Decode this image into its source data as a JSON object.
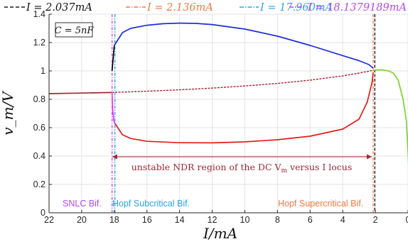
{
  "chart_data": {
    "type": "line",
    "legend": {
      "placement": "top",
      "entries": [
        {
          "label": "I = 2.037mA",
          "color": "#1a1a1a",
          "dash": "long-dash"
        },
        {
          "label": "I = 2.136mA",
          "color": "#f07a43",
          "dash": "dash-dot"
        },
        {
          "label": "I = 17.960mA",
          "color": "#2ea3e0",
          "dash": "dash-dot"
        },
        {
          "label": "I = 18.1379189mA",
          "color": "#b347f0",
          "dash": "dash-dot"
        }
      ]
    },
    "annotations": {
      "capacitance": "C = 5nF",
      "region": "unstable NDR region of the DC V",
      "region_sub": "m",
      "region_tail": " versus I locus",
      "sn": "SNLC Bif.",
      "hopf_sub": "Hopf Subcritical Bif.",
      "hopf_super": "Hopf Supercritical Bif."
    },
    "x_axis": {
      "label": "I/mA",
      "range": [
        22,
        0
      ],
      "reversed": true,
      "ticks": [
        "22",
        "20",
        "18",
        "16",
        "14",
        "12",
        "10",
        "8",
        "6",
        "4",
        "2",
        "0"
      ]
    },
    "y_axis": {
      "label": "v_m/V",
      "range": [
        0,
        1.4
      ],
      "ticks": [
        "0",
        "0.2",
        "0.4",
        "0.6",
        "0.8",
        "1",
        "1.2",
        "1.4"
      ]
    },
    "grid": true,
    "vlines": [
      {
        "x": 2.037,
        "color": "#1a1a1a"
      },
      {
        "x": 2.136,
        "color": "#f07a43"
      },
      {
        "x": 17.96,
        "color": "#2ea3e0"
      },
      {
        "x": 18.1379,
        "color": "#b347f0"
      }
    ],
    "series": [
      {
        "role": "dc-stable-left",
        "color": "#a32638",
        "points": [
          [
            22,
            0.84
          ],
          [
            20,
            0.844
          ],
          [
            18.14,
            0.848
          ]
        ]
      },
      {
        "role": "dc-unstable",
        "color": "#a32638",
        "dashed": true,
        "points": [
          [
            18.14,
            0.848
          ],
          [
            16,
            0.857
          ],
          [
            14,
            0.867
          ],
          [
            12,
            0.879
          ],
          [
            10,
            0.894
          ],
          [
            8,
            0.912
          ],
          [
            6,
            0.935
          ],
          [
            4,
            0.965
          ],
          [
            3,
            0.985
          ],
          [
            2.1,
            1.005
          ]
        ]
      },
      {
        "role": "dc-stable-right",
        "color": "#77d62b",
        "points": [
          [
            2.1,
            1.005
          ],
          [
            1.6,
            1.008
          ],
          [
            1.2,
            1.0
          ],
          [
            0.9,
            0.985
          ],
          [
            0.6,
            0.935
          ],
          [
            0.3,
            0.8
          ],
          [
            0.1,
            0.65
          ],
          [
            0,
            0.43
          ],
          [
            -0.1,
            0.2
          ]
        ]
      },
      {
        "role": "lc-max-stable",
        "color": "#1f2dd8",
        "points": [
          [
            18.0,
            1.18
          ],
          [
            17.5,
            1.27
          ],
          [
            17,
            1.3
          ],
          [
            16,
            1.322
          ],
          [
            15,
            1.333
          ],
          [
            14,
            1.337
          ],
          [
            13,
            1.335
          ],
          [
            12,
            1.327
          ],
          [
            10,
            1.295
          ],
          [
            8,
            1.245
          ],
          [
            6,
            1.18
          ],
          [
            4,
            1.108
          ],
          [
            3,
            1.072
          ],
          [
            2.4,
            1.045
          ],
          [
            2.136,
            1.02
          ]
        ]
      },
      {
        "role": "lc-max-unstable",
        "color": "#000000",
        "points": [
          [
            18.14,
            1.0
          ],
          [
            18.07,
            1.09
          ],
          [
            18.0,
            1.18
          ]
        ]
      },
      {
        "role": "lc-min-stable",
        "color": "#e81b1b",
        "points": [
          [
            17.96,
            0.63
          ],
          [
            17.5,
            0.55
          ],
          [
            17,
            0.524
          ],
          [
            16,
            0.504
          ],
          [
            14,
            0.494
          ],
          [
            12,
            0.493
          ],
          [
            10,
            0.5
          ],
          [
            8,
            0.515
          ],
          [
            6,
            0.54
          ],
          [
            4,
            0.59
          ],
          [
            3,
            0.66
          ],
          [
            2.5,
            0.78
          ],
          [
            2.2,
            0.92
          ],
          [
            2.136,
            0.99
          ]
        ]
      },
      {
        "role": "lc-min-unstable",
        "color": "#e83ae8",
        "points": [
          [
            18.14,
            0.85
          ],
          [
            18.1,
            0.73
          ],
          [
            18.03,
            0.65
          ],
          [
            17.96,
            0.63
          ]
        ]
      }
    ]
  }
}
